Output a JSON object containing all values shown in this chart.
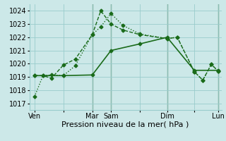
{
  "xlabel": "Pression niveau de la mer( hPa )",
  "bg_color": "#cce8e8",
  "grid_color": "#99cccc",
  "line_color": "#1a6b1a",
  "ylim": [
    1016.5,
    1024.5
  ],
  "yticks": [
    1017,
    1018,
    1019,
    1020,
    1021,
    1022,
    1023,
    1024
  ],
  "xlim": [
    -0.3,
    11.0
  ],
  "xtick_labels": [
    "Ven",
    "",
    "Mar",
    "Sam",
    "",
    "Dim",
    "",
    "Lun"
  ],
  "xtick_positions": [
    0.0,
    1.7,
    3.4,
    4.5,
    6.2,
    7.8,
    9.4,
    10.8
  ],
  "series": [
    {
      "x": [
        0.0,
        0.5,
        1.0,
        1.7,
        2.4,
        3.4,
        3.9,
        4.5,
        5.2,
        6.2,
        7.8,
        8.4,
        9.4,
        9.9,
        10.4,
        10.8
      ],
      "y": [
        1017.5,
        1019.1,
        1019.15,
        1019.1,
        1019.85,
        1022.2,
        1022.8,
        1023.8,
        1022.9,
        1022.25,
        1021.9,
        1022.0,
        1019.4,
        1018.75,
        1019.95,
        1019.45
      ],
      "linestyle": "dotted",
      "lw": 1.0,
      "marker": "D",
      "ms": 2.5
    },
    {
      "x": [
        0.0,
        0.5,
        1.0,
        1.7,
        2.4,
        3.4,
        3.9,
        4.5,
        5.2,
        6.2,
        7.8,
        8.4,
        9.4,
        9.9,
        10.4,
        10.8
      ],
      "y": [
        1019.1,
        1019.1,
        1018.9,
        1019.9,
        1020.35,
        1022.2,
        1024.0,
        1023.0,
        1022.55,
        1022.2,
        1021.9,
        1022.0,
        1019.4,
        1018.75,
        1019.95,
        1019.45
      ],
      "linestyle": "dashed",
      "lw": 1.0,
      "marker": "D",
      "ms": 2.5
    },
    {
      "x": [
        0.0,
        1.7,
        3.4,
        4.5,
        6.2,
        7.8,
        9.4,
        10.8
      ],
      "y": [
        1019.1,
        1019.1,
        1019.15,
        1021.0,
        1021.5,
        1022.0,
        1019.5,
        1019.5
      ],
      "linestyle": "solid",
      "lw": 1.2,
      "marker": "D",
      "ms": 2.5
    }
  ],
  "vlines": [
    3.4,
    4.5,
    7.8,
    10.8
  ],
  "vline_color": "#336633",
  "font_size_xlabel": 8,
  "tick_font_size": 7
}
